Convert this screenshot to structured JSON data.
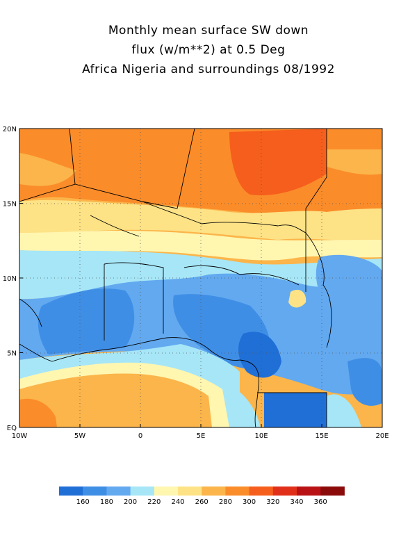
{
  "title_lines": [
    "Monthly mean surface SW down",
    "flux (w/m**2) at 0.5 Deg",
    "Africa Nigeria and surroundings 08/1992"
  ],
  "map": {
    "lon_range": [
      -10,
      20
    ],
    "lat_range": [
      0,
      20
    ],
    "lon_ticks": [
      {
        "value": -10,
        "label": "10W"
      },
      {
        "value": -5,
        "label": "5W"
      },
      {
        "value": 0,
        "label": "0"
      },
      {
        "value": 5,
        "label": "5E"
      },
      {
        "value": 10,
        "label": "10E"
      },
      {
        "value": 15,
        "label": "15E"
      },
      {
        "value": 20,
        "label": "20E"
      }
    ],
    "lat_ticks": [
      {
        "value": 0,
        "label": "EQ"
      },
      {
        "value": 5,
        "label": "5N"
      },
      {
        "value": 10,
        "label": "10N"
      },
      {
        "value": 15,
        "label": "15N"
      },
      {
        "value": 20,
        "label": "20N"
      }
    ],
    "grid": true
  },
  "colorbar": {
    "colors": [
      "#1f6fd6",
      "#3f8ee6",
      "#62a9f0",
      "#a6e6f7",
      "#fff6b0",
      "#fde286",
      "#fbb54a",
      "#fb8c2a",
      "#f55e1c",
      "#e0301a",
      "#b81214",
      "#8b0a0a"
    ],
    "labels": [
      "160",
      "180",
      "200",
      "220",
      "240",
      "260",
      "280",
      "300",
      "320",
      "340",
      "360"
    ]
  }
}
